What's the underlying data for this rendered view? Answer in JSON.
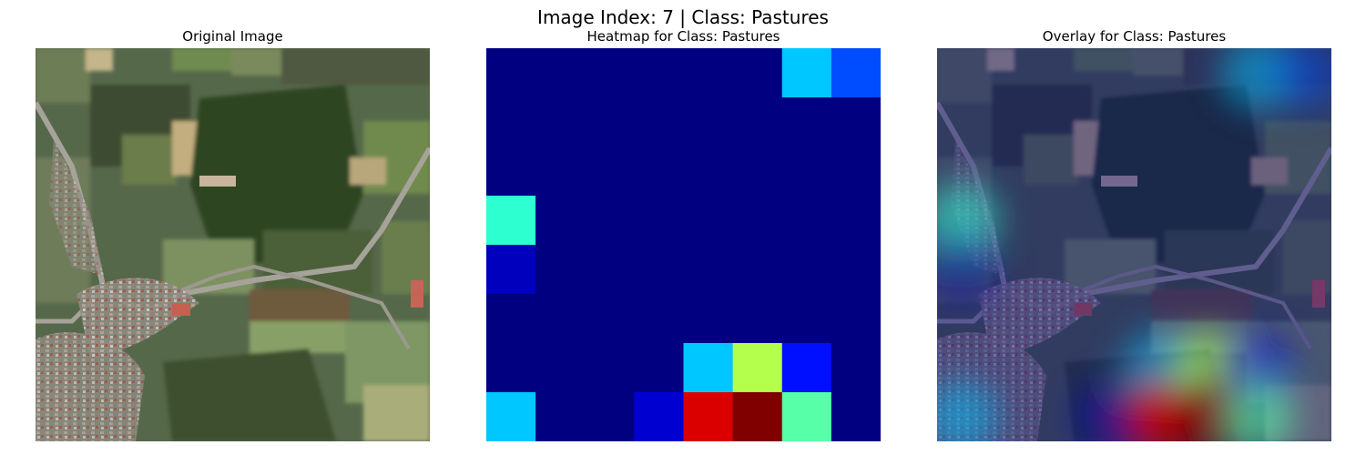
{
  "figure": {
    "suptitle": "Image Index: 7 | Class: Pastures",
    "panels": [
      {
        "title": "Original Image"
      },
      {
        "title": "Heatmap for Class: Pastures"
      },
      {
        "title": "Overlay for Class: Pastures"
      }
    ]
  },
  "heatmap": {
    "rows": 8,
    "cols": 8,
    "colormap": "jet",
    "values": [
      [
        0,
        0,
        0,
        0,
        0,
        0,
        0.32,
        0.2
      ],
      [
        0,
        0,
        0,
        0,
        0,
        0,
        0,
        0
      ],
      [
        0,
        0,
        0,
        0,
        0,
        0,
        0,
        0
      ],
      [
        0.42,
        0,
        0,
        0,
        0,
        0,
        0,
        0
      ],
      [
        0.06,
        0,
        0,
        0,
        0,
        0,
        0,
        0
      ],
      [
        0,
        0,
        0,
        0,
        0,
        0,
        0,
        0
      ],
      [
        0,
        0,
        0,
        0,
        0.32,
        0.55,
        0.14,
        0
      ],
      [
        0.32,
        0,
        0,
        0.08,
        0.91,
        1.0,
        0.46,
        0
      ]
    ]
  },
  "colors": {
    "jet_low": "#00007f",
    "jet_high": "#7f0000",
    "field_dark": "#3f4f36",
    "field_light": "#7b8d5c"
  }
}
